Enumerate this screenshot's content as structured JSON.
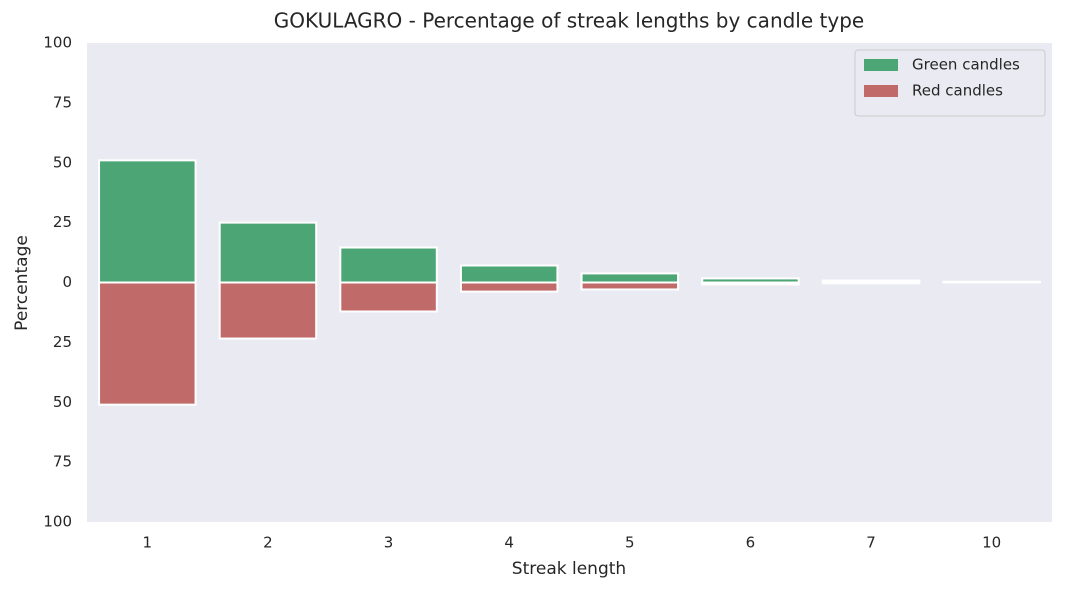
{
  "chart_data": {
    "type": "bar",
    "title": "GOKULAGRO - Percentage of streak lengths by candle type",
    "x_label": "Streak length",
    "y_label": "Percentage",
    "categories": [
      "1",
      "2",
      "3",
      "4",
      "5",
      "6",
      "7",
      "10"
    ],
    "series": [
      {
        "name": "Green candles",
        "color": "#4ca574",
        "values": [
          51,
          25,
          14.6,
          7.1,
          3.8,
          1.7,
          0.8,
          0.3
        ]
      },
      {
        "name": "Red candles",
        "color": "#c06a6a",
        "values": [
          -51,
          -23.4,
          -12.1,
          -3.8,
          -2.9,
          -0.8,
          -0.3,
          0
        ]
      }
    ],
    "ylim": [
      -100,
      100
    ],
    "yticks": [
      {
        "value": -100,
        "label": "100"
      },
      {
        "value": -75,
        "label": "75"
      },
      {
        "value": -50,
        "label": "50"
      },
      {
        "value": -25,
        "label": "25"
      },
      0,
      25,
      50,
      75,
      100
    ],
    "grid": false,
    "legend": "upper right"
  }
}
